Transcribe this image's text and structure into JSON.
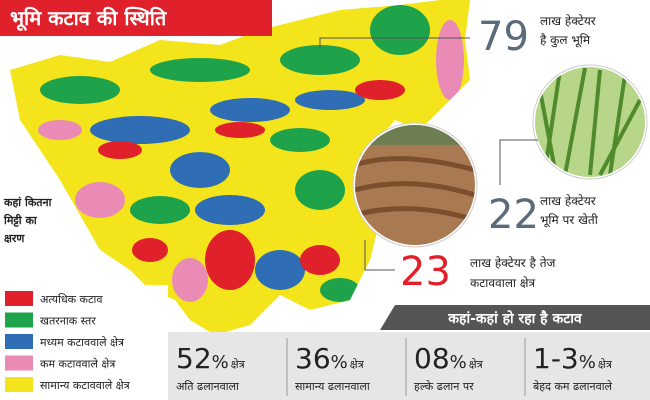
{
  "header": {
    "title": "भूमि कटाव की स्थिति"
  },
  "stats": [
    {
      "number": "79",
      "lines": [
        "लाख हेक्टेयर",
        "है कुल भूमि"
      ]
    },
    {
      "number": "22",
      "lines": [
        "लाख हेक्टेयर",
        "भूमि पर खेती"
      ]
    },
    {
      "number": "23",
      "lines": [
        "लाख हेक्टेयर है तेज",
        "कटाववाला क्षेत्र"
      ]
    }
  ],
  "legend": {
    "heading": [
      "कहां कितना",
      "मिट्टी का",
      "क्षरण"
    ],
    "items": [
      {
        "label": "अत्यधिक कटाव",
        "color": "#e0202a"
      },
      {
        "label": "खतरनाक स्तर",
        "color": "#1fa34a"
      },
      {
        "label": "मध्यम कटाववाले क्षेत्र",
        "color": "#2f6db5"
      },
      {
        "label": "कम कटाववाले क्षेत्र",
        "color": "#e98bb5"
      },
      {
        "label": "सामान्य कटाववाले क्षेत्र",
        "color": "#f3e41c"
      }
    ]
  },
  "banner": "कहां-कहां हो रहा है कटाव",
  "slopes": [
    {
      "number": "52",
      "unit": "%",
      "label": "क्षेत्र",
      "sub": "अति ढलानवाला"
    },
    {
      "number": "36",
      "unit": "%",
      "label": "क्षेत्र",
      "sub": "सामान्य ढलानवाला"
    },
    {
      "number": "08",
      "unit": "%",
      "label": "क्षेत्र",
      "sub": "हल्के ढलान पर"
    },
    {
      "number": "1-3",
      "unit": "%",
      "label": "क्षेत्र",
      "sub": "बेहद कम ढलानवाले"
    }
  ]
}
